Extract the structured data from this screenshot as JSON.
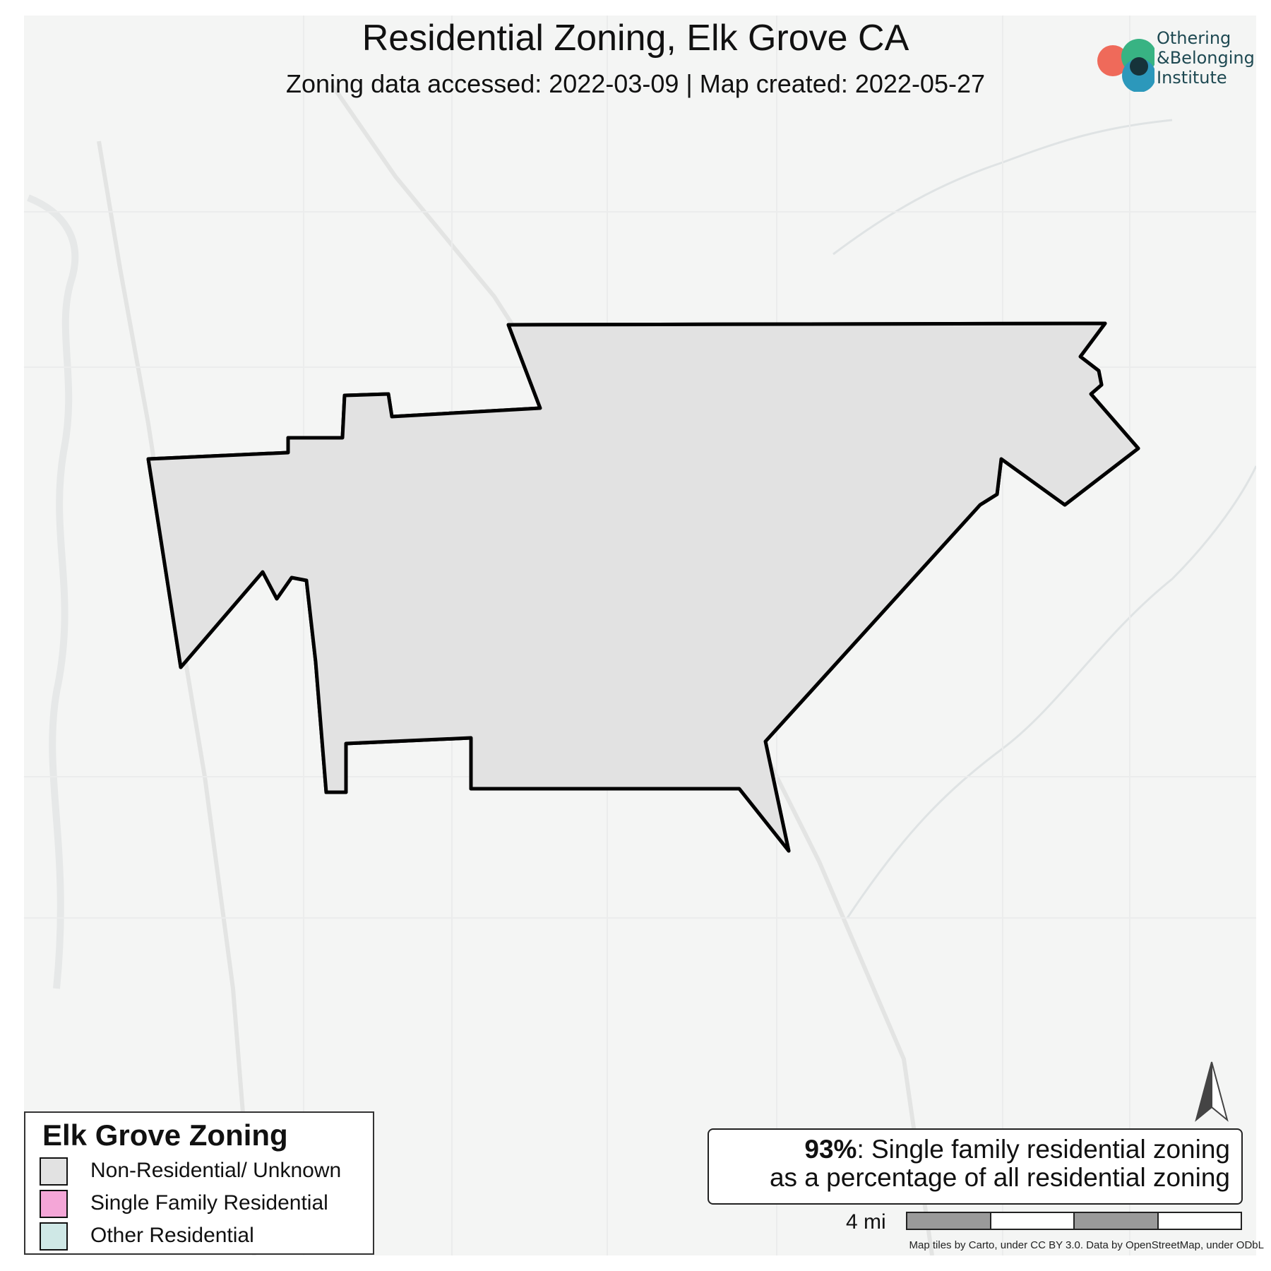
{
  "title": "Residential Zoning, Elk Grove CA",
  "subtitle": "Zoning data accessed: 2022-03-09 | Map created: 2022-05-27",
  "logo": {
    "line1": "Othering",
    "line2": "&Belonging",
    "line3": "Institute"
  },
  "legend": {
    "title": "Elk Grove Zoning",
    "items": [
      {
        "label": "Non-Residential/ Unknown",
        "color": "#e2e2e2"
      },
      {
        "label": "Single Family Residential",
        "color": "#f4a6d7"
      },
      {
        "label": "Other Residential",
        "color": "#cfe8e6"
      }
    ]
  },
  "stat": {
    "value": "93%",
    "line1_rest": ": Single family residential zoning",
    "line2": "as a percentage of all residential zoning"
  },
  "scale": {
    "label": "4 mi"
  },
  "attribution": "Map tiles by Carto, under CC BY 3.0. Data by OpenStreetMap, under ODbL",
  "colors": {
    "single_family": "#ff00b4",
    "other_residential": "#7ccaca",
    "non_residential": "#e2e2e2",
    "boundary": "#000000",
    "basemap": "#f4f5f4"
  }
}
